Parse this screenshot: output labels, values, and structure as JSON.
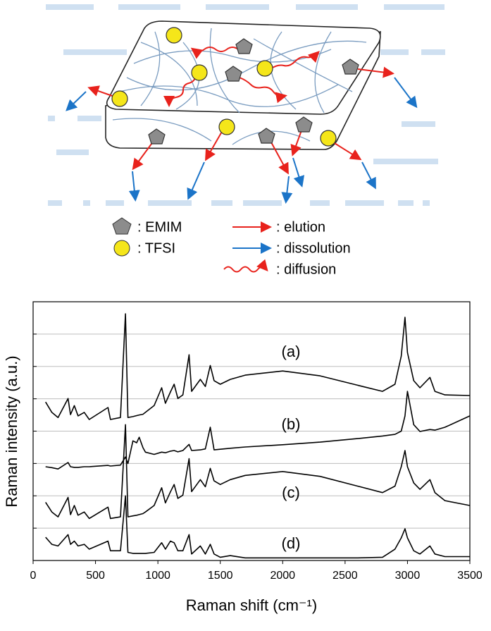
{
  "diagram": {
    "legend": [
      ": EMIM",
      ": TFSI",
      ": elution",
      ": dissolution",
      ": diffusion"
    ]
  },
  "chart_data": {
    "type": "line",
    "xlabel": "Raman shift (cm⁻¹)",
    "ylabel": "Raman intensity (a.u.)",
    "x": [
      100,
      150,
      200,
      280,
      300,
      330,
      360,
      410,
      450,
      600,
      620,
      700,
      740,
      760,
      800,
      830,
      850,
      880,
      900,
      970,
      1030,
      1060,
      1100,
      1130,
      1160,
      1200,
      1250,
      1270,
      1340,
      1380,
      1420,
      1450,
      1500,
      1580,
      1700,
      2000,
      2300,
      2600,
      2800,
      2900,
      2950,
      2980,
      3000,
      3050,
      3100,
      3180,
      3220,
      3300,
      3500
    ],
    "series": [
      {
        "name": "(a)",
        "color": "#000000",
        "values": [
          4.9,
          4.58,
          4.42,
          5.01,
          4.51,
          4.79,
          4.47,
          4.58,
          4.36,
          4.73,
          4.36,
          4.42,
          7.63,
          4.42,
          4.45,
          4.48,
          4.5,
          4.52,
          4.58,
          4.79,
          5.34,
          4.86,
          5.21,
          5.45,
          5.01,
          5.12,
          6.36,
          5.23,
          5.6,
          5.38,
          6.03,
          5.56,
          5.45,
          5.6,
          5.73,
          5.86,
          5.71,
          5.42,
          5.23,
          5.45,
          6.32,
          7.52,
          6.43,
          5.56,
          5.34,
          5.66,
          5.23,
          5.12,
          5.1
        ]
      },
      {
        "name": "(b)",
        "color": "#000000",
        "values": [
          2.9,
          2.87,
          2.83,
          3.03,
          2.9,
          2.88,
          2.88,
          2.9,
          2.9,
          2.94,
          2.92,
          2.95,
          3.2,
          3.0,
          3.7,
          3.64,
          3.81,
          3.49,
          3.35,
          3.28,
          3.35,
          3.33,
          3.38,
          3.4,
          3.36,
          3.4,
          3.59,
          3.4,
          3.42,
          3.45,
          4.12,
          3.42,
          3.44,
          3.47,
          3.51,
          3.58,
          3.66,
          3.77,
          3.85,
          3.9,
          4.0,
          4.47,
          5.23,
          4.2,
          3.99,
          4.05,
          4.03,
          4.12,
          4.47
        ]
      },
      {
        "name": "(c)",
        "color": "#000000",
        "values": [
          1.8,
          1.5,
          1.35,
          1.95,
          1.42,
          1.7,
          1.4,
          1.5,
          1.3,
          1.65,
          1.3,
          1.35,
          4.2,
          1.35,
          1.38,
          1.4,
          1.42,
          1.45,
          1.5,
          1.7,
          2.25,
          1.78,
          2.12,
          2.35,
          1.92,
          2.02,
          3.15,
          2.13,
          2.5,
          2.28,
          2.85,
          2.46,
          2.35,
          2.5,
          2.63,
          2.75,
          2.6,
          2.3,
          2.1,
          2.3,
          2.9,
          3.4,
          2.9,
          2.4,
          2.2,
          2.5,
          2.1,
          1.85,
          1.7
        ]
      },
      {
        "name": "(d)",
        "color": "#000000",
        "values": [
          0.72,
          0.5,
          0.45,
          0.8,
          0.5,
          0.6,
          0.45,
          0.5,
          0.35,
          0.6,
          0.3,
          0.3,
          2.0,
          0.25,
          0.22,
          0.22,
          0.22,
          0.22,
          0.22,
          0.25,
          0.55,
          0.35,
          0.6,
          0.55,
          0.3,
          0.3,
          0.8,
          0.2,
          0.45,
          0.2,
          0.5,
          0.2,
          0.1,
          0.15,
          0.08,
          0.08,
          0.08,
          0.08,
          0.1,
          0.35,
          0.7,
          0.98,
          0.7,
          0.3,
          0.2,
          0.45,
          0.2,
          0.12,
          0.12
        ]
      }
    ],
    "xlim": [
      0,
      3500
    ],
    "xticks": [
      0,
      500,
      1000,
      1500,
      2000,
      2500,
      3000,
      3500
    ],
    "ylim": [
      0,
      8
    ],
    "yticks": [
      1,
      2,
      3,
      4,
      5,
      6,
      7
    ],
    "grid": true
  }
}
